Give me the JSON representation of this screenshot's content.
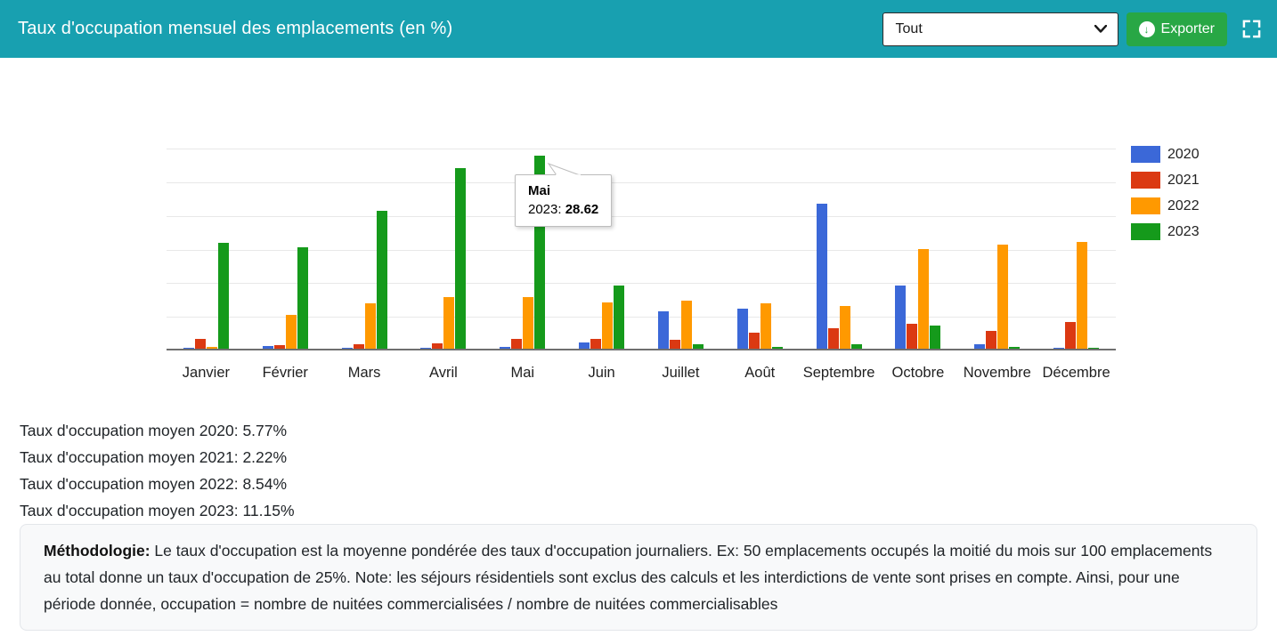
{
  "header": {
    "title": "Taux d'occupation mensuel des emplacements (en %)",
    "filter_select": {
      "value": "Tout"
    },
    "export_button": {
      "label": "Exporter"
    },
    "colors": {
      "header_background": "#18A0B0",
      "export_green": "#28a745"
    }
  },
  "chart_data": {
    "type": "bar",
    "title": "Taux d'occupation mensuel des emplacements (en %)",
    "categories": [
      "Janvier",
      "Février",
      "Mars",
      "Avril",
      "Mai",
      "Juin",
      "Juillet",
      "Août",
      "Septembre",
      "Octobre",
      "Novembre",
      "Décembre"
    ],
    "series": [
      {
        "name": "2020",
        "color": "#3B68D8",
        "values": [
          0.1,
          0.4,
          0.1,
          0.1,
          0.3,
          0.9,
          5.6,
          6.0,
          21.5,
          9.4,
          0.6,
          0.1
        ]
      },
      {
        "name": "2021",
        "color": "#DB3912",
        "values": [
          1.5,
          0.5,
          0.7,
          0.8,
          1.5,
          1.5,
          1.3,
          2.4,
          3.1,
          3.7,
          2.7,
          4.0
        ]
      },
      {
        "name": "2022",
        "color": "#FF9900",
        "values": [
          0.3,
          5.0,
          6.7,
          7.7,
          7.6,
          6.9,
          7.2,
          6.7,
          6.3,
          14.8,
          15.4,
          15.9
        ]
      },
      {
        "name": "2023",
        "color": "#159A1B",
        "values": [
          15.7,
          15.0,
          20.5,
          26.8,
          28.62,
          9.4,
          0.6,
          0.3,
          0.6,
          3.4,
          0.2,
          0.1
        ]
      }
    ],
    "ylabel": "",
    "xlabel": "",
    "ylim": [
      0,
      30
    ],
    "grid_step": 5,
    "grid": true,
    "y_tick_labels_visible": false,
    "legend_position": "right",
    "tooltip": {
      "month": "Mai",
      "series_label": "2023:",
      "value": "28.62"
    }
  },
  "stats": {
    "lines": [
      "Taux d'occupation moyen 2020: 5.77%",
      "Taux d'occupation moyen 2021: 2.22%",
      "Taux d'occupation moyen 2022: 8.54%",
      "Taux d'occupation moyen 2023: 11.15%"
    ]
  },
  "methodology": {
    "label": "Méthodologie:",
    "text": " Le taux d'occupation est la moyenne pondérée des taux d'occupation journaliers. Ex: 50 emplacements occupés la moitié du mois sur 100 emplacements au total donne un taux d'occupation de 25%. Note: les séjours résidentiels sont exclus des calculs et les interdictions de vente sont prises en compte. Ainsi, pour une période donnée, occupation = nombre de nuitées commercialisées / nombre de nuitées commercialisables"
  }
}
